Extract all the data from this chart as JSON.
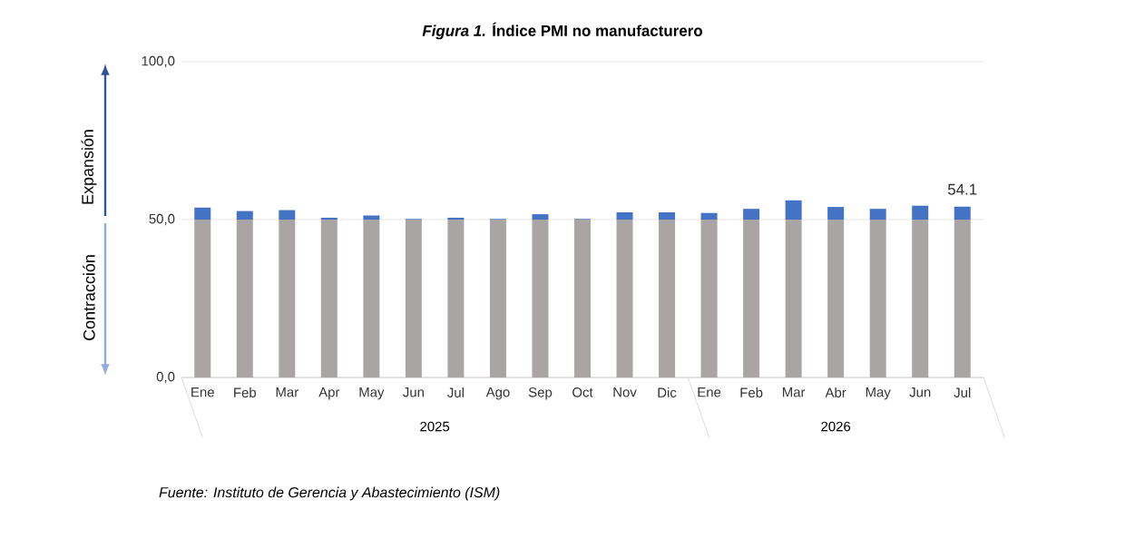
{
  "chart_data": {
    "type": "bar",
    "title": "*Figura 1.* Índice PMI no manufacturero",
    "categories": [
      "Ene",
      "Feb",
      "Mar",
      "Apr",
      "May",
      "Jun",
      "Jul",
      "Ago",
      "Sep",
      "Oct",
      "Nov",
      "Dic",
      "Ene",
      "Feb",
      "Mar",
      "Abr",
      "May",
      "Jun",
      "Jul"
    ],
    "stacked": true,
    "series": [
      {
        "color": "#aaa5a5",
        "values": [
          50,
          50,
          50,
          50,
          50,
          50,
          50,
          50,
          50,
          50,
          50,
          50,
          50,
          50,
          50,
          50,
          50,
          50,
          50
        ]
      },
      {
        "color": "#4472c4",
        "values": [
          3.8,
          2.7,
          3.0,
          0.6,
          1.3,
          0.2,
          0.6,
          0.2,
          1.7,
          0.2,
          2.3,
          2.3,
          2.1,
          3.4,
          6.1,
          4.0,
          3.4,
          4.4,
          4.1
        ]
      }
    ],
    "totals": [
      null,
      null,
      null,
      null,
      null,
      null,
      null,
      null,
      null,
      null,
      null,
      null,
      null,
      null,
      null,
      null,
      null,
      null,
      "54.1"
    ],
    "ylim": [
      0,
      100
    ],
    "yticks": [
      {
        "value": 0,
        "label": "0,0"
      },
      {
        "value": 50,
        "label": "50,0"
      },
      {
        "value": 100,
        "label": "100,0"
      }
    ],
    "grid": "y",
    "annotations": [
      "Expansión",
      "Contracción",
      "2025",
      "2026",
      "Fuente: Instituto de Gerencia y Abastecimiento (ISM)"
    ]
  }
}
